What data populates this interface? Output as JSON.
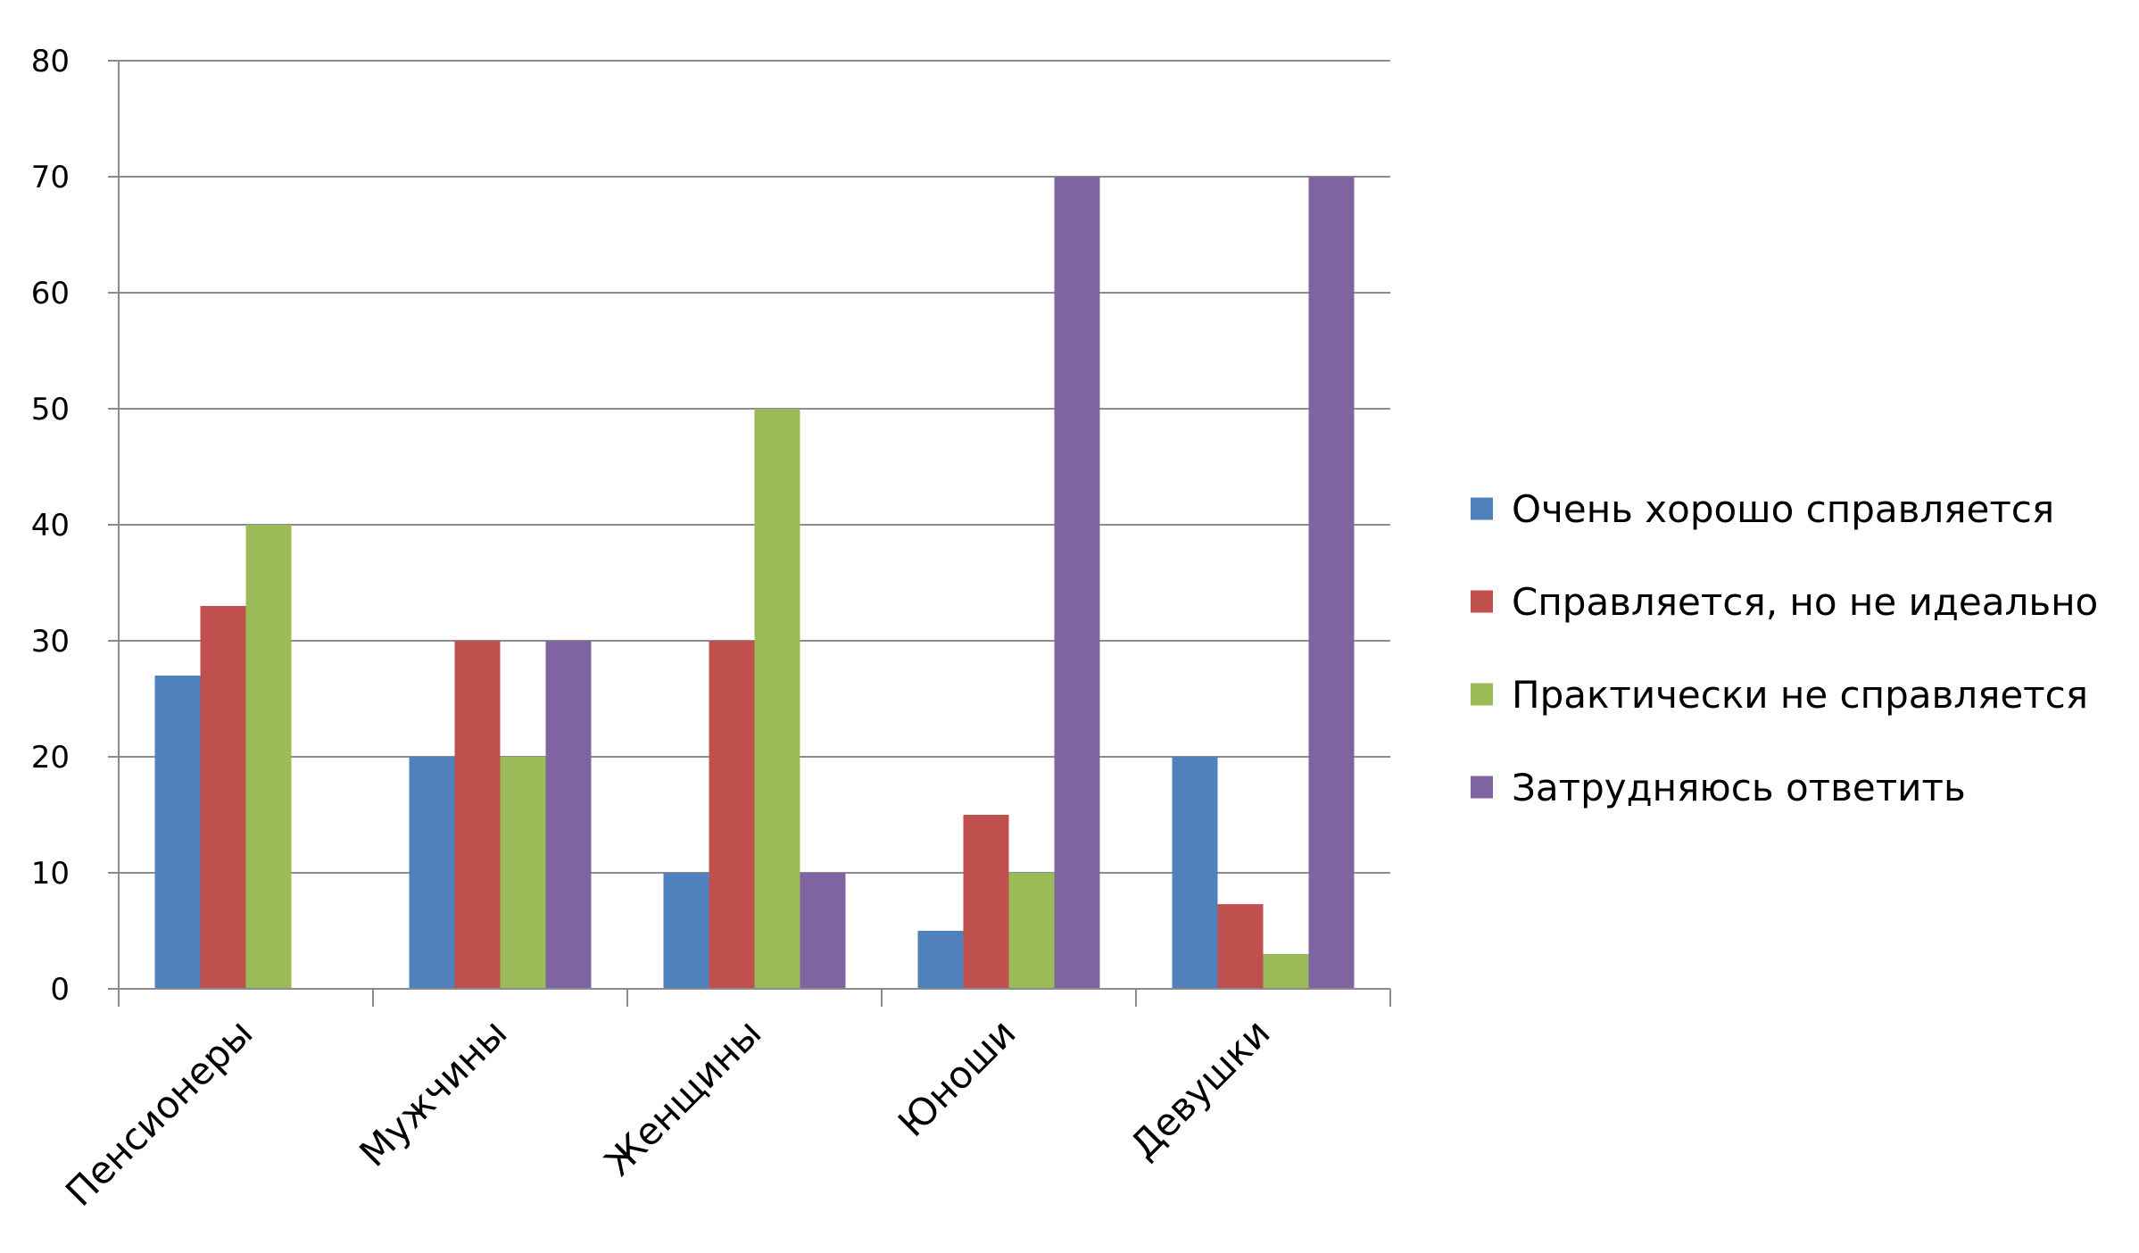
{
  "chart_data": {
    "type": "bar",
    "title": "",
    "xlabel": "",
    "ylabel": "",
    "ylim": [
      0,
      80
    ],
    "yticks": [
      0,
      10,
      20,
      30,
      40,
      50,
      60,
      70,
      80
    ],
    "grid": true,
    "legend_position": "right",
    "categories": [
      "Пенсионеры",
      "Мужчины",
      "Женщины",
      "Юноши",
      "Девушки"
    ],
    "series": [
      {
        "name": "Очень хорошо справляется",
        "color": "#4F81BD",
        "values": [
          27,
          20,
          10,
          5,
          20
        ]
      },
      {
        "name": "Справляется, но не идеально",
        "color": "#C0504D",
        "values": [
          33,
          30,
          30,
          15,
          7.3
        ]
      },
      {
        "name": "Практически не справляется",
        "color": "#9BBB59",
        "values": [
          40,
          20,
          50,
          10,
          3
        ]
      },
      {
        "name": "Затрудняюсь ответить",
        "color": "#8064A2",
        "values": [
          0,
          30,
          10,
          70,
          70
        ]
      }
    ]
  }
}
